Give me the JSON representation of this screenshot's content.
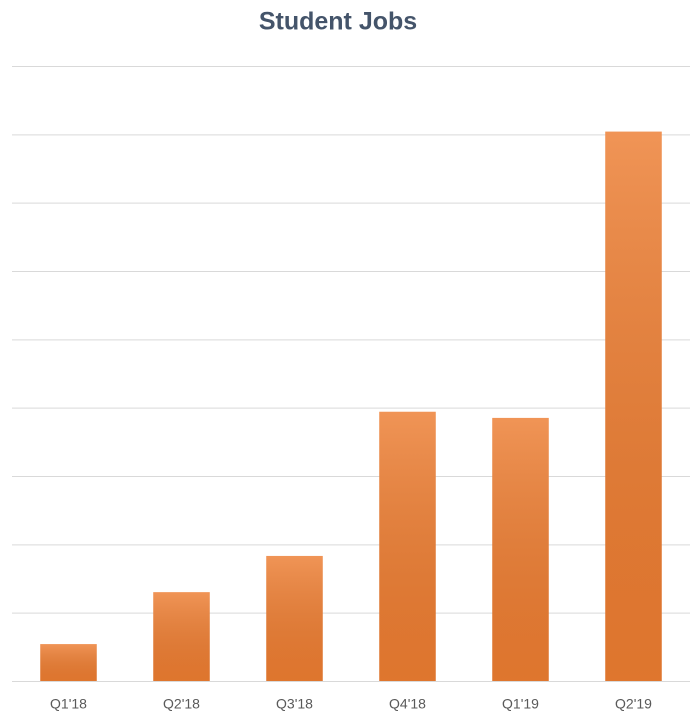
{
  "chart_data": {
    "type": "bar",
    "title": "Student Jobs",
    "categories": [
      "Q1'18",
      "Q2'18",
      "Q3'18",
      "Q4'18",
      "Q1'19",
      "Q2'19"
    ],
    "values": [
      0.54,
      1.3,
      1.83,
      3.94,
      3.85,
      8.04
    ],
    "color": "#ed7d31",
    "ylim": [
      0,
      9
    ],
    "yticks": [
      0,
      1,
      2,
      3,
      4,
      5,
      6,
      7,
      8,
      9
    ],
    "grid": true
  }
}
